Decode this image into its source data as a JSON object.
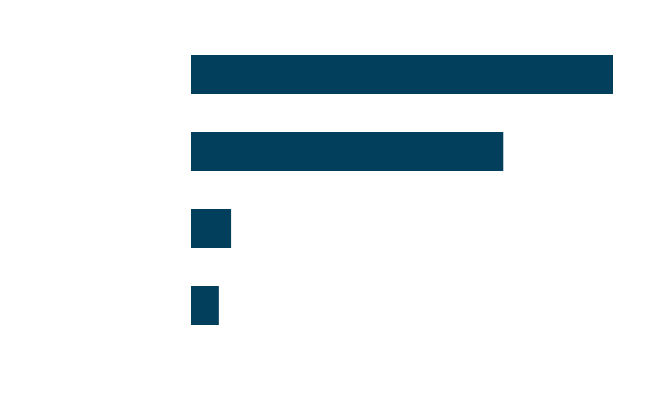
{
  "chart_data": {
    "type": "bar",
    "orientation": "horizontal",
    "categories": [
      null,
      null,
      null,
      null
    ],
    "values": [
      100,
      74,
      9.5,
      6.6
    ],
    "color": "#023f5c"
  }
}
